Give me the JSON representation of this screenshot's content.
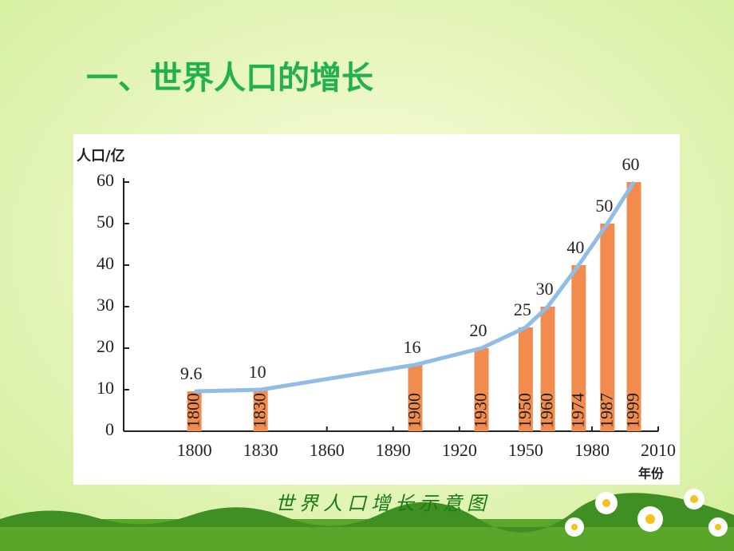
{
  "chart_data": {
    "type": "bar",
    "title": "一、世界人口的增长",
    "caption": "世界人口增长示意图",
    "y_label": "人口/亿",
    "x_label": "年份",
    "x": [
      1800,
      1830,
      1900,
      1930,
      1950,
      1960,
      1974,
      1987,
      1999
    ],
    "values": [
      9.6,
      10,
      16,
      20,
      25,
      30,
      40,
      50,
      60
    ],
    "color": "#f28c4e",
    "line_color": "#8fbde6",
    "xlim": [
      1768,
      2010
    ],
    "xticks": [
      1800,
      1830,
      1860,
      1890,
      1920,
      1950,
      1980,
      2010
    ],
    "ylim": [
      0,
      60
    ],
    "yticks": [
      0,
      10,
      20,
      30,
      40,
      50,
      60
    ]
  }
}
